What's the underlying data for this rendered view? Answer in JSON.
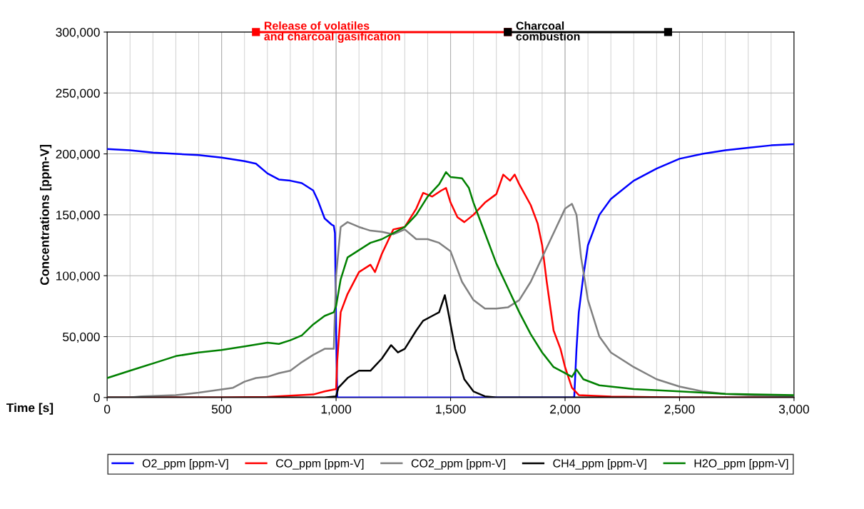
{
  "chart_data": {
    "type": "line",
    "xlabel": "Time [s]",
    "ylabel": "Concentrations [ppm-V]",
    "xlim": [
      0,
      3000
    ],
    "ylim": [
      0,
      300000
    ],
    "xticks": [
      0,
      {
        "value": 500,
        "label": "500"
      },
      {
        "value": 1000,
        "label": "1,000"
      },
      {
        "value": 1500,
        "label": "1,500"
      },
      {
        "value": 2000,
        "label": "2,000"
      },
      {
        "value": 2500,
        "label": "2,500"
      },
      {
        "value": 3000,
        "label": "3,000"
      }
    ],
    "yticks": [
      0,
      {
        "value": 50000,
        "label": "50,000"
      },
      {
        "value": 100000,
        "label": "100,000"
      },
      {
        "value": 150000,
        "label": "150,000"
      },
      {
        "value": 200000,
        "label": "200,000"
      },
      {
        "value": 250000,
        "label": "250,000"
      },
      {
        "value": 300000,
        "label": "300,000"
      }
    ],
    "grid": true,
    "legend": "bottom",
    "series": [
      {
        "name": "O2_ppm [ppm-V]",
        "color": "#0000ff",
        "x": [
          0,
          100,
          200,
          300,
          400,
          500,
          600,
          650,
          700,
          750,
          800,
          850,
          900,
          920,
          950,
          980,
          990,
          995,
          1000,
          1005,
          1500,
          2000,
          2040,
          2050,
          2060,
          2080,
          2100,
          2150,
          2200,
          2300,
          2400,
          2500,
          2600,
          2700,
          2800,
          2900,
          3000
        ],
        "values": [
          204000,
          203000,
          201000,
          200000,
          199000,
          197000,
          194000,
          192000,
          184000,
          179000,
          178000,
          176000,
          170000,
          162000,
          147000,
          142000,
          141000,
          135000,
          60000,
          0,
          0,
          0,
          0,
          40000,
          70000,
          100000,
          125000,
          150000,
          163000,
          178000,
          188000,
          196000,
          200000,
          203000,
          205000,
          207000,
          208000
        ]
      },
      {
        "name": "CO_ppm [ppm-V]",
        "color": "#ff0000",
        "x": [
          0,
          500,
          700,
          800,
          900,
          950,
          1000,
          1005,
          1020,
          1050,
          1100,
          1150,
          1170,
          1200,
          1250,
          1300,
          1350,
          1380,
          1420,
          1460,
          1480,
          1500,
          1530,
          1560,
          1600,
          1650,
          1700,
          1730,
          1760,
          1780,
          1800,
          1850,
          1880,
          1900,
          1920,
          1950,
          1980,
          2000,
          2030,
          2060,
          2200,
          2500,
          3000
        ],
        "values": [
          0,
          0,
          500,
          1500,
          2500,
          5000,
          7000,
          30000,
          70000,
          85000,
          103000,
          109000,
          103000,
          118000,
          138000,
          140000,
          155000,
          168000,
          165000,
          170000,
          172000,
          160000,
          148000,
          144000,
          150000,
          160000,
          167000,
          183000,
          178000,
          183000,
          175000,
          158000,
          143000,
          125000,
          95000,
          55000,
          40000,
          25000,
          8000,
          2000,
          800,
          0,
          0
        ]
      },
      {
        "name": "CO2_ppm [ppm-V]",
        "color": "#808080",
        "x": [
          0,
          100,
          150,
          300,
          400,
          550,
          600,
          650,
          700,
          750,
          800,
          850,
          900,
          950,
          990,
          1000,
          1020,
          1050,
          1100,
          1150,
          1200,
          1250,
          1300,
          1350,
          1400,
          1450,
          1500,
          1520,
          1550,
          1600,
          1650,
          1700,
          1750,
          1800,
          1850,
          1900,
          1950,
          2000,
          2030,
          2050,
          2070,
          2100,
          2150,
          2200,
          2300,
          2400,
          2500,
          2600,
          2700,
          2800,
          3000
        ],
        "values": [
          0,
          0,
          1000,
          2000,
          4000,
          8000,
          13000,
          16000,
          17000,
          20000,
          22000,
          29000,
          35000,
          40000,
          40000,
          100000,
          140000,
          144000,
          140000,
          137000,
          136000,
          134000,
          138000,
          130000,
          130000,
          127000,
          120000,
          110000,
          95000,
          80000,
          73000,
          73000,
          74000,
          80000,
          95000,
          115000,
          135000,
          155000,
          159000,
          150000,
          115000,
          80000,
          50000,
          37000,
          25000,
          15000,
          9000,
          5000,
          3000,
          2000,
          1000
        ]
      },
      {
        "name": "CH4_ppm [ppm-V]",
        "color": "#000000",
        "x": [
          0,
          950,
          1000,
          1010,
          1050,
          1100,
          1150,
          1200,
          1240,
          1270,
          1300,
          1350,
          1380,
          1420,
          1450,
          1475,
          1490,
          1520,
          1560,
          1600,
          1650,
          1700,
          3000
        ],
        "values": [
          0,
          0,
          1000,
          8000,
          16000,
          22000,
          22000,
          32000,
          43000,
          37000,
          40000,
          55000,
          63000,
          67000,
          70000,
          84000,
          70000,
          40000,
          15000,
          5000,
          1000,
          0,
          0
        ]
      },
      {
        "name": "H2O_ppm [ppm-V]",
        "color": "#008000",
        "x": [
          0,
          100,
          200,
          300,
          400,
          500,
          600,
          700,
          750,
          800,
          850,
          900,
          950,
          990,
          1000,
          1020,
          1050,
          1100,
          1150,
          1200,
          1250,
          1300,
          1350,
          1400,
          1450,
          1480,
          1500,
          1550,
          1580,
          1600,
          1650,
          1700,
          1750,
          1800,
          1850,
          1900,
          1950,
          2000,
          2030,
          2050,
          2080,
          2150,
          2300,
          2500,
          2700,
          3000
        ],
        "values": [
          16000,
          22000,
          28000,
          34000,
          37000,
          39000,
          42000,
          45000,
          44000,
          47000,
          51000,
          60000,
          67000,
          70000,
          75000,
          97000,
          115000,
          121000,
          127000,
          130000,
          135000,
          140000,
          150000,
          165000,
          175000,
          185000,
          181000,
          180000,
          172000,
          160000,
          135000,
          110000,
          90000,
          70000,
          52000,
          37000,
          25000,
          20000,
          17000,
          23000,
          15000,
          10000,
          7000,
          5000,
          3000,
          2000
        ]
      },
      {
        "name": "Release of volatiles\nand charcoal gasification",
        "color": "#ff0000",
        "marker": "square",
        "x": [
          650,
          1750
        ],
        "values": [
          300000,
          300000
        ]
      },
      {
        "name": "Charcoal\ncombustion",
        "color": "#000000",
        "marker": "square",
        "x": [
          1750,
          2450
        ],
        "values": [
          300000,
          300000
        ]
      }
    ]
  }
}
